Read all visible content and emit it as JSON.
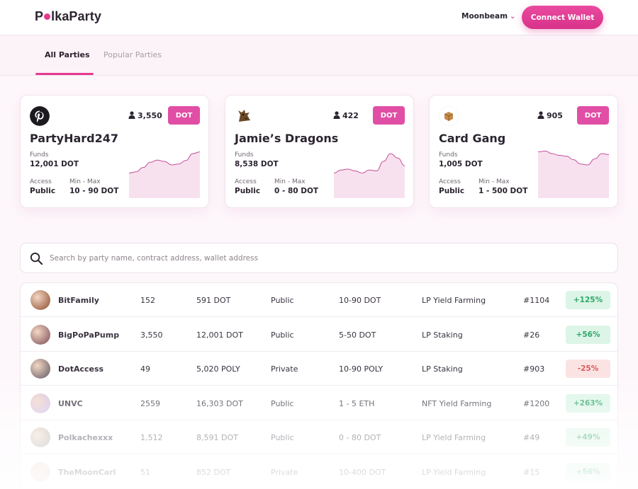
{
  "header": {
    "logo_pre": "P",
    "logo_post": "lkaParty",
    "network": "Moonbeam",
    "connect_label": "Connect Wallet"
  },
  "tabs": [
    {
      "label": "All Parties",
      "active": true
    },
    {
      "label": "Popular Parties",
      "active": false
    }
  ],
  "cards": [
    {
      "title": "PartyHard247",
      "members": "3,550",
      "token": "DOT",
      "funds_label": "Funds",
      "funds": "12,001 DOT",
      "access_label": "Access",
      "access": "Public",
      "minmax_label": "Min - Max",
      "minmax": "10 - 90 DOT",
      "avatar_icon": "pinterest-logo-icon",
      "trend": [
        0.55,
        0.52,
        0.42,
        0.3,
        0.25,
        0.28,
        0.36,
        0.34,
        0.26,
        0.1,
        0.06
      ]
    },
    {
      "title": "Jamie’s Dragons",
      "members": "422",
      "token": "DOT",
      "funds_label": "Funds",
      "funds": "8,538 DOT",
      "access_label": "Access",
      "access": "Public",
      "minmax_label": "Min - Max",
      "minmax": "0 - 80 DOT",
      "avatar_icon": "dragon-avatar-icon",
      "trend": [
        0.55,
        0.48,
        0.46,
        0.5,
        0.55,
        0.48,
        0.5,
        0.28,
        0.1,
        0.2,
        0.38
      ]
    },
    {
      "title": "Card Gang",
      "members": "905",
      "token": "DOT",
      "funds_label": "Funds",
      "funds": "1,005 DOT",
      "access_label": "Access",
      "access": "Public",
      "minmax_label": "Min - Max",
      "minmax": "1 - 500 DOT",
      "avatar_icon": "box-icon",
      "trend": [
        0.06,
        0.04,
        0.1,
        0.14,
        0.16,
        0.24,
        0.34,
        0.36,
        0.22,
        0.1,
        0.12
      ]
    }
  ],
  "search": {
    "placeholder": "Search by party name, contract address, wallet address"
  },
  "rows": [
    {
      "name": "BitFamily",
      "members": "152",
      "funds": "591 DOT",
      "access": "Public",
      "range": "10-90 DOT",
      "strategy": "LP Yield Farming",
      "rank": "#1104",
      "change": "+125%",
      "positive": true,
      "opacity": 1,
      "avatar": "#8a4a2c"
    },
    {
      "name": "BigPoPaPump",
      "members": "3,550",
      "funds": "12,001 DOT",
      "access": "Public",
      "range": "5-50 DOT",
      "strategy": "LP Staking",
      "rank": "#26",
      "change": "+56%",
      "positive": true,
      "opacity": 1,
      "avatar": "#7b4a55"
    },
    {
      "name": "DotAccess",
      "members": "49",
      "funds": "5,020 POLY",
      "access": "Private",
      "range": "10-90 POLY",
      "strategy": "LP Staking",
      "rank": "#903",
      "change": "-25%",
      "positive": false,
      "opacity": 1,
      "avatar": "#5d5560"
    },
    {
      "name": "UNVC",
      "members": "2559",
      "funds": "16,303 DOT",
      "access": "Public",
      "range": "1 - 5 ETH",
      "strategy": "NFT Yield Farming",
      "rank": "#1200",
      "change": "+263%",
      "positive": true,
      "opacity": 1,
      "avatar": "#c9b5f0"
    },
    {
      "name": "Polkachexxx",
      "members": "1,512",
      "funds": "8,591 DOT",
      "access": "Public",
      "range": "0 - 80 DOT",
      "strategy": "LP Yield Farming",
      "rank": "#49",
      "change": "+49%",
      "positive": true,
      "opacity": 1,
      "avatar": "#9a9a9a"
    },
    {
      "name": "TheMoonCarl",
      "members": "51",
      "funds": "852 DOT",
      "access": "Private",
      "range": "10-400 DOT",
      "strategy": "LP Yield Farming",
      "rank": "#15",
      "change": "+56%",
      "positive": true,
      "opacity": 1,
      "avatar": "#d8d2d6"
    }
  ]
}
